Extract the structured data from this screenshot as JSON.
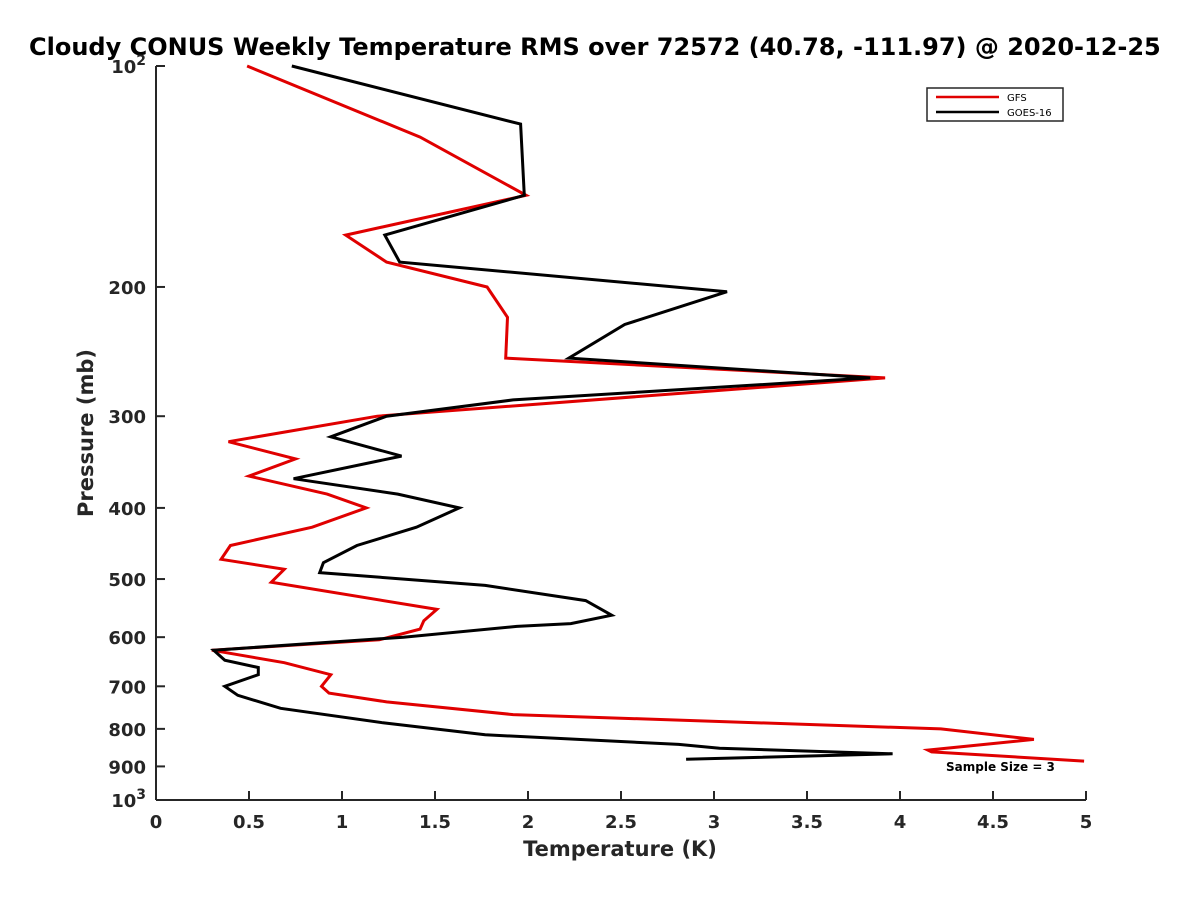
{
  "chart_data": {
    "type": "line",
    "title": "Cloudy CONUS Weekly Temperature RMS over 72572 (40.78, -111.97) @ 2020-12-25",
    "xlabel": "Temperature (K)",
    "ylabel": "Pressure (mb)",
    "xlim": [
      0,
      5
    ],
    "ylim": [
      100,
      1000
    ],
    "y_scale": "log",
    "y_reversed": true,
    "x_ticks": [
      {
        "value": 0,
        "label": "0"
      },
      {
        "value": 0.5,
        "label": "0.5"
      },
      {
        "value": 1,
        "label": "1"
      },
      {
        "value": 1.5,
        "label": "1.5"
      },
      {
        "value": 2,
        "label": "2"
      },
      {
        "value": 2.5,
        "label": "2.5"
      },
      {
        "value": 3,
        "label": "3"
      },
      {
        "value": 3.5,
        "label": "3.5"
      },
      {
        "value": 4,
        "label": "4"
      },
      {
        "value": 4.5,
        "label": "4.5"
      },
      {
        "value": 5,
        "label": "5"
      }
    ],
    "y_ticks": [
      {
        "value": 100,
        "base": "10",
        "exp": "2"
      },
      {
        "value": 200,
        "label": "200"
      },
      {
        "value": 300,
        "label": "300"
      },
      {
        "value": 400,
        "label": "400"
      },
      {
        "value": 500,
        "label": "500"
      },
      {
        "value": 600,
        "label": "600"
      },
      {
        "value": 700,
        "label": "700"
      },
      {
        "value": 800,
        "label": "800"
      },
      {
        "value": 900,
        "label": "900"
      },
      {
        "value": 1000,
        "base": "10",
        "exp": "3"
      }
    ],
    "legend": {
      "position": "top-right"
    },
    "annotation": "Sample Size = 3",
    "series": [
      {
        "name": "GFS",
        "color": "#e00000",
        "points": [
          [
            0.49,
            100
          ],
          [
            1.42,
            125
          ],
          [
            1.99,
            150
          ],
          [
            1.02,
            170
          ],
          [
            1.24,
            185
          ],
          [
            1.78,
            200
          ],
          [
            1.89,
            220
          ],
          [
            1.88,
            250
          ],
          [
            3.92,
            266
          ],
          [
            1.19,
            300
          ],
          [
            0.39,
            325
          ],
          [
            0.75,
            343
          ],
          [
            0.5,
            362
          ],
          [
            0.92,
            383
          ],
          [
            1.13,
            400
          ],
          [
            0.84,
            425
          ],
          [
            0.4,
            450
          ],
          [
            0.35,
            470
          ],
          [
            0.69,
            485
          ],
          [
            0.62,
            505
          ],
          [
            1.51,
            550
          ],
          [
            1.44,
            570
          ],
          [
            1.42,
            585
          ],
          [
            1.2,
            605
          ],
          [
            0.3,
            625
          ],
          [
            0.69,
            650
          ],
          [
            0.94,
            675
          ],
          [
            0.89,
            700
          ],
          [
            0.93,
            715
          ],
          [
            1.24,
            735
          ],
          [
            1.92,
            765
          ],
          [
            4.22,
            800
          ],
          [
            4.72,
            827
          ],
          [
            4.15,
            855
          ],
          [
            4.17,
            860
          ],
          [
            4.99,
            885
          ]
        ]
      },
      {
        "name": "GOES-16",
        "color": "#000000",
        "points": [
          [
            0.73,
            100
          ],
          [
            1.96,
            120
          ],
          [
            1.98,
            150
          ],
          [
            1.23,
            170
          ],
          [
            1.31,
            185
          ],
          [
            3.07,
            203
          ],
          [
            2.52,
            225
          ],
          [
            2.22,
            250
          ],
          [
            3.84,
            266
          ],
          [
            1.92,
            285
          ],
          [
            1.24,
            300
          ],
          [
            0.94,
            320
          ],
          [
            1.32,
            340
          ],
          [
            0.74,
            365
          ],
          [
            1.3,
            383
          ],
          [
            1.63,
            400
          ],
          [
            1.4,
            425
          ],
          [
            1.08,
            450
          ],
          [
            0.9,
            475
          ],
          [
            0.88,
            490
          ],
          [
            1.77,
            510
          ],
          [
            2.31,
            535
          ],
          [
            2.45,
            560
          ],
          [
            2.23,
            575
          ],
          [
            1.94,
            580
          ],
          [
            1.33,
            600
          ],
          [
            0.31,
            625
          ],
          [
            0.37,
            645
          ],
          [
            0.55,
            660
          ],
          [
            0.55,
            675
          ],
          [
            0.37,
            700
          ],
          [
            0.44,
            720
          ],
          [
            0.67,
            750
          ],
          [
            1.22,
            785
          ],
          [
            1.77,
            815
          ],
          [
            2.81,
            840
          ],
          [
            3.03,
            850
          ],
          [
            3.96,
            865
          ],
          [
            2.85,
            880
          ]
        ]
      }
    ]
  }
}
